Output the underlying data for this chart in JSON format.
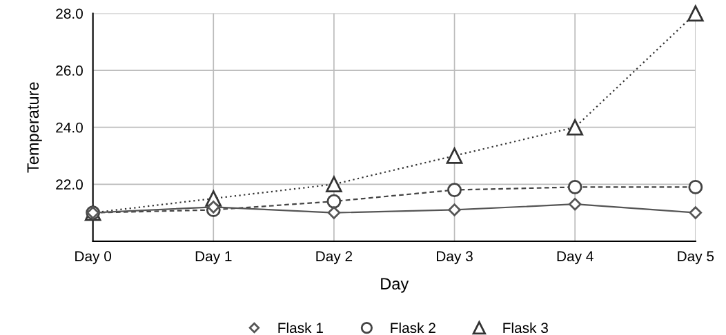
{
  "chart_data": {
    "type": "line",
    "xlabel": "Day",
    "ylabel": "Temperature",
    "categories": [
      "Day 0",
      "Day 1",
      "Day 2",
      "Day 3",
      "Day 4",
      "Day 5"
    ],
    "series": [
      {
        "name": "Flask 1",
        "color": "#555555",
        "marker": "diamond",
        "line_style": "solid",
        "values": [
          21.0,
          21.2,
          21.0,
          21.1,
          21.3,
          21.0
        ]
      },
      {
        "name": "Flask 2",
        "color": "#444444",
        "marker": "circle",
        "line_style": "dashed",
        "values": [
          21.0,
          21.1,
          21.4,
          21.8,
          21.9,
          21.9
        ]
      },
      {
        "name": "Flask 3",
        "color": "#333333",
        "marker": "triangle",
        "line_style": "dotted",
        "values": [
          21.0,
          21.5,
          22.0,
          23.0,
          24.0,
          28.0
        ]
      }
    ],
    "ylim": [
      20,
      28
    ],
    "yticks": [
      {
        "value": 22,
        "label": "22.0"
      },
      {
        "value": 24,
        "label": "24.0"
      },
      {
        "value": 26,
        "label": "26.0"
      },
      {
        "value": 28,
        "label": "28.0"
      }
    ],
    "grid": true,
    "legend": "bottom"
  }
}
